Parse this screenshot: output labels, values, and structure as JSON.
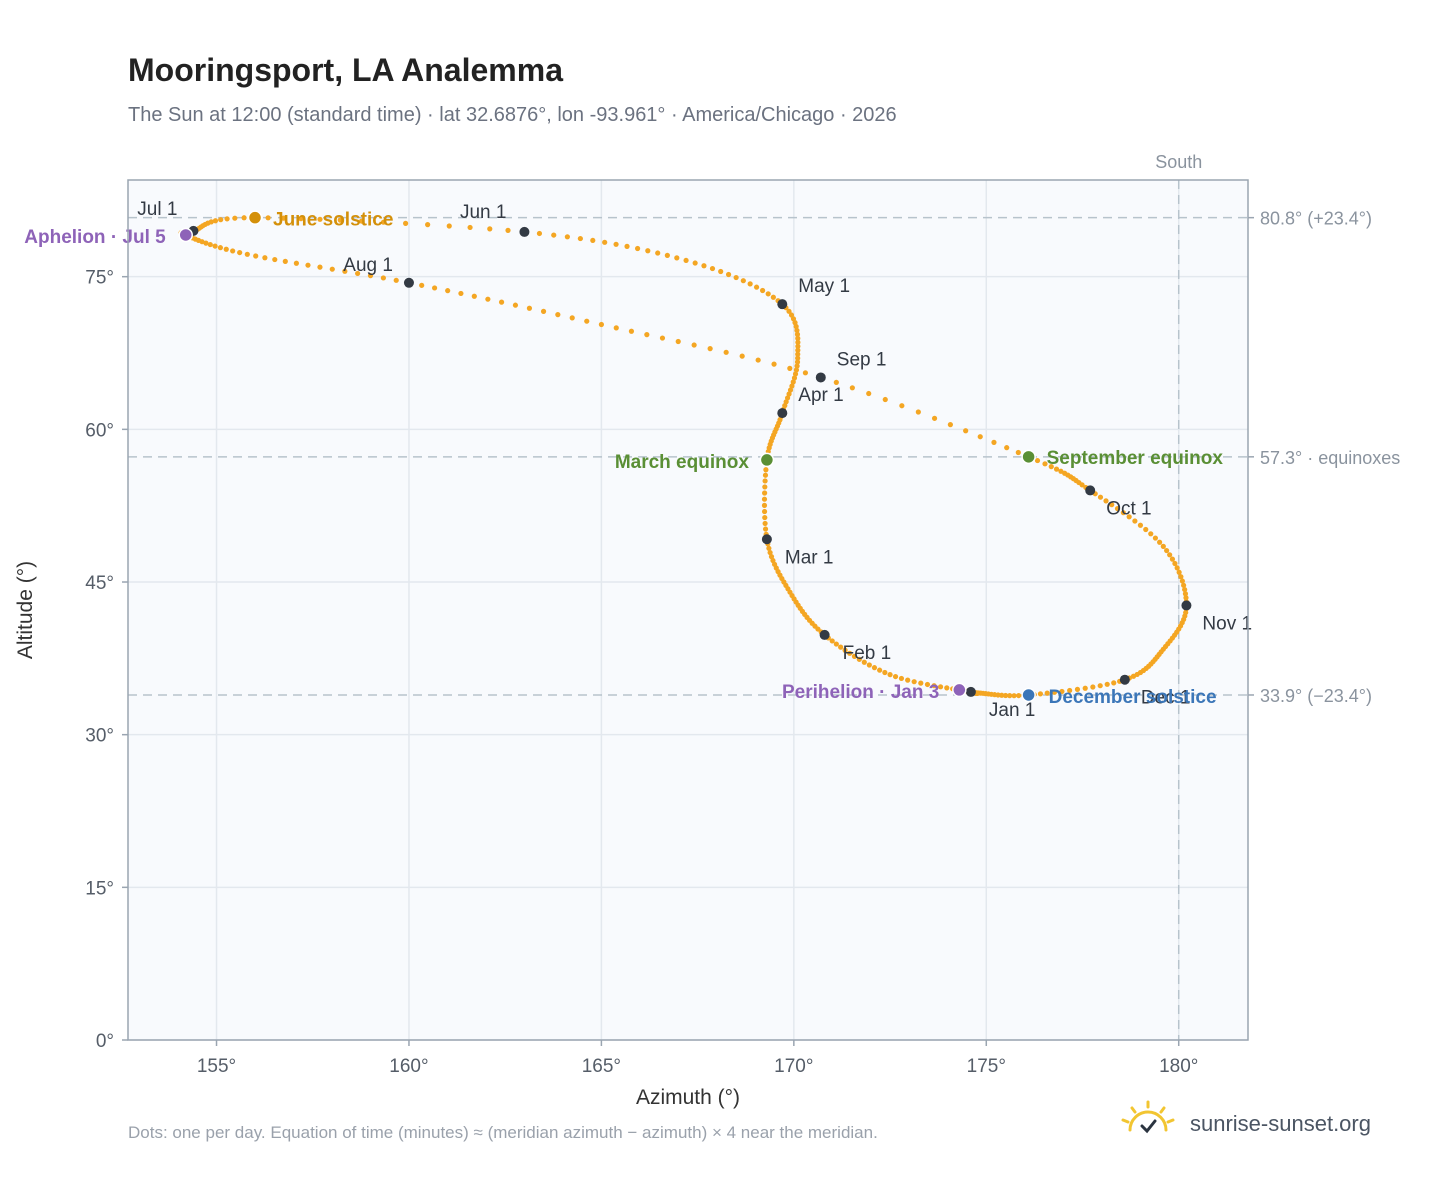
{
  "header": {
    "title": "Mooringsport, LA Analemma",
    "subtitle": "The Sun at 12:00 (standard time) · lat 32.6876°, lon -93.961° · America/Chicago · 2026"
  },
  "footer": {
    "note": "Dots: one per day. Equation of time (minutes) ≈ (meridian azimuth − azimuth) × 4 near the meridian.",
    "brand": "sunrise-sunset.org"
  },
  "colors": {
    "curve": "#f4a623",
    "month_dot": "#333a44",
    "solstice_june": "#d4900a",
    "equinox": "#5a8f35",
    "solstice_december": "#3b76b8",
    "apsis": "#8e63b8",
    "plot_bg": "#f8fafd",
    "grid": "#e3e8ee",
    "ref_line": "#b7c3cc"
  },
  "chart_data": {
    "type": "scatter",
    "xlabel": "Azimuth (°)",
    "ylabel": "Altitude (°)",
    "xlim": [
      152.7,
      181.8
    ],
    "ylim": [
      0,
      84.5
    ],
    "xticks": [
      155,
      160,
      165,
      170,
      175,
      180
    ],
    "xtick_labels": [
      "155°",
      "160°",
      "165°",
      "170°",
      "175°",
      "180°"
    ],
    "yticks": [
      0,
      15,
      30,
      45,
      60,
      75
    ],
    "ytick_labels": [
      "0°",
      "15°",
      "30°",
      "45°",
      "60°",
      "75°"
    ],
    "grid": true,
    "meridian": {
      "azimuth": 180.0,
      "label": "South"
    },
    "reference_lines": [
      {
        "altitude": 80.8,
        "label": "80.8° (+23.4°)"
      },
      {
        "altitude": 57.3,
        "label": "57.3° · equinoxes"
      },
      {
        "altitude": 33.9,
        "label": "33.9° (−23.4°)"
      }
    ],
    "series": [
      {
        "points_per": "day",
        "path_keypoints": [
          {
            "date": "Jan 1",
            "az": 174.6,
            "alt": 34.2
          },
          {
            "date": "Jan 15",
            "az": 172.5,
            "alt": 35.9
          },
          {
            "date": "Feb 1",
            "az": 170.8,
            "alt": 39.8
          },
          {
            "date": "Feb 15",
            "az": 169.9,
            "alt": 44.0
          },
          {
            "date": "Mar 1",
            "az": 169.3,
            "alt": 49.2
          },
          {
            "date": "Mar 20",
            "az": 169.3,
            "alt": 57.0
          },
          {
            "date": "Apr 1",
            "az": 169.7,
            "alt": 61.6
          },
          {
            "date": "Apr 15",
            "az": 170.1,
            "alt": 67.0
          },
          {
            "date": "May 1",
            "az": 169.7,
            "alt": 72.3
          },
          {
            "date": "May 15",
            "az": 167.2,
            "alt": 76.6
          },
          {
            "date": "Jun 1",
            "az": 163.0,
            "alt": 79.4
          },
          {
            "date": "Jun 21",
            "az": 156.0,
            "alt": 80.8
          },
          {
            "date": "Jul 1",
            "az": 154.4,
            "alt": 79.5
          },
          {
            "date": "Jul 5",
            "az": 154.2,
            "alt": 79.1
          },
          {
            "date": "Jul 15",
            "az": 155.8,
            "alt": 77.2
          },
          {
            "date": "Aug 1",
            "az": 160.0,
            "alt": 74.4
          },
          {
            "date": "Aug 15",
            "az": 165.0,
            "alt": 70.3
          },
          {
            "date": "Sep 1",
            "az": 170.7,
            "alt": 65.1
          },
          {
            "date": "Sep 23",
            "az": 176.1,
            "alt": 57.3
          },
          {
            "date": "Oct 1",
            "az": 177.7,
            "alt": 54.0
          },
          {
            "date": "Oct 15",
            "az": 179.6,
            "alt": 48.5
          },
          {
            "date": "Nov 1",
            "az": 180.2,
            "alt": 42.7
          },
          {
            "date": "Nov 15",
            "az": 179.6,
            "alt": 38.4
          },
          {
            "date": "Dec 1",
            "az": 178.6,
            "alt": 35.4
          },
          {
            "date": "Dec 21",
            "az": 176.1,
            "alt": 33.9
          },
          {
            "date": "Dec 31",
            "az": 174.8,
            "alt": 34.1
          }
        ]
      }
    ],
    "month_markers": [
      {
        "label": "Jan 1",
        "az": 174.6,
        "alt": 34.2
      },
      {
        "label": "Feb 1",
        "az": 170.8,
        "alt": 39.8
      },
      {
        "label": "Mar 1",
        "az": 169.3,
        "alt": 49.2
      },
      {
        "label": "Apr 1",
        "az": 169.7,
        "alt": 61.6
      },
      {
        "label": "May 1",
        "az": 169.7,
        "alt": 72.3
      },
      {
        "label": "Jun 1",
        "az": 163.0,
        "alt": 79.4
      },
      {
        "label": "Jul 1",
        "az": 154.4,
        "alt": 79.5
      },
      {
        "label": "Aug 1",
        "az": 160.0,
        "alt": 74.4
      },
      {
        "label": "Sep 1",
        "az": 170.7,
        "alt": 65.1
      },
      {
        "label": "Oct 1",
        "az": 177.7,
        "alt": 54.0
      },
      {
        "label": "Nov 1",
        "az": 180.2,
        "alt": 42.7
      },
      {
        "label": "Dec 1",
        "az": 178.6,
        "alt": 35.4
      }
    ],
    "events": [
      {
        "label": "June solstice",
        "az": 156.0,
        "alt": 80.8,
        "color": "#d4900a"
      },
      {
        "label": "March equinox",
        "az": 169.3,
        "alt": 57.0,
        "color": "#5a8f35"
      },
      {
        "label": "September equinox",
        "az": 176.1,
        "alt": 57.3,
        "color": "#5a8f35"
      },
      {
        "label": "December solstice",
        "az": 176.1,
        "alt": 33.9,
        "color": "#3b76b8"
      },
      {
        "label": "Aphelion · Jul 5",
        "az": 154.2,
        "alt": 79.1,
        "color": "#8e63b8"
      },
      {
        "label": "Perihelion · Jan 3",
        "az": 174.3,
        "alt": 34.4,
        "color": "#8e63b8"
      }
    ]
  }
}
